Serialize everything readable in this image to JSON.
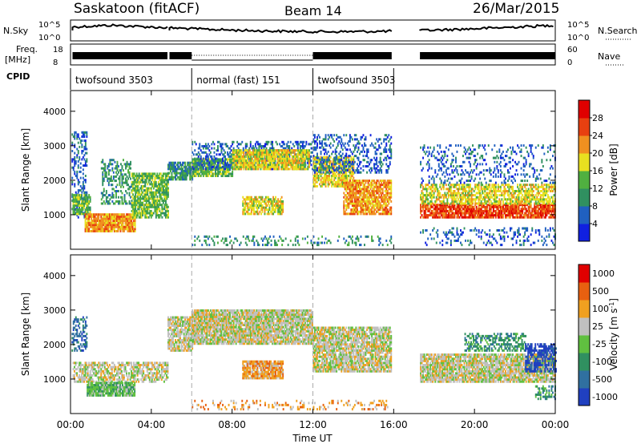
{
  "header": {
    "site": "Saskatoon (fitACF)",
    "beam": "Beam 14",
    "date": "26/Mar/2015"
  },
  "panels": {
    "nsky": {
      "left_label": "N.Sky",
      "ticks": [
        "10^5",
        "10^0"
      ],
      "right_label": "N.Search",
      "right_ticks": [
        "10^5",
        "10^0"
      ]
    },
    "freq": {
      "left_label": "Freq.",
      "unit": "[MHz]",
      "ticks": [
        "18",
        "8"
      ],
      "right_label": "Nave",
      "right_ticks": [
        "60",
        "0"
      ]
    },
    "cpid": {
      "label": "CPID",
      "segments": [
        {
          "label": "twofsound 3503",
          "start_h": 0,
          "end_h": 6
        },
        {
          "label": "normal (fast) 151",
          "start_h": 6,
          "end_h": 12
        },
        {
          "label": "twofsound 3503",
          "start_h": 12,
          "end_h": 16
        }
      ]
    }
  },
  "chart_data": [
    {
      "type": "heatmap",
      "name": "power",
      "ylabel": "Slant Range [km]",
      "xlim": [
        0,
        24
      ],
      "ylim": [
        0,
        4600
      ],
      "yticks": [
        "1000",
        "2000",
        "3000",
        "4000"
      ],
      "colorbar": {
        "label": "Power [dB]",
        "ticks": [
          "4",
          "8",
          "12",
          "16",
          "20",
          "24",
          "28"
        ],
        "colors": [
          "#1020e0",
          "#2060c0",
          "#309060",
          "#50b040",
          "#e8e020",
          "#f09020",
          "#e84010",
          "#e00000"
        ]
      },
      "bands": [
        {
          "x0": 0.05,
          "x1": 0.8,
          "y0": 900,
          "y1": 3400,
          "c": 1,
          "d": 0.32
        },
        {
          "x0": 0.1,
          "x1": 1.0,
          "y0": 1000,
          "y1": 1600,
          "c": 3,
          "d": 0.85
        },
        {
          "x0": 0.7,
          "x1": 3.2,
          "y0": 500,
          "y1": 1000,
          "c": 5,
          "d": 0.9
        },
        {
          "x0": 1.5,
          "x1": 3.0,
          "y0": 1300,
          "y1": 2600,
          "c": 2,
          "d": 0.4
        },
        {
          "x0": 3.0,
          "x1": 4.8,
          "y0": 900,
          "y1": 2200,
          "c": 3,
          "d": 0.75
        },
        {
          "x0": 4.8,
          "x1": 6.0,
          "y0": 2000,
          "y1": 2500,
          "c": 2,
          "d": 0.75
        },
        {
          "x0": 6.0,
          "x1": 8.0,
          "y0": 2100,
          "y1": 2600,
          "c": 3,
          "d": 0.85
        },
        {
          "x0": 6.0,
          "x1": 12.0,
          "y0": 2300,
          "y1": 3100,
          "c": 1,
          "d": 0.35
        },
        {
          "x0": 8.0,
          "x1": 11.8,
          "y0": 2300,
          "y1": 2900,
          "c": 4,
          "d": 0.85
        },
        {
          "x0": 8.5,
          "x1": 10.5,
          "y0": 1000,
          "y1": 1500,
          "c": 4,
          "d": 0.7
        },
        {
          "x0": 12.0,
          "x1": 14.0,
          "y0": 1800,
          "y1": 2700,
          "c": 4,
          "d": 0.75
        },
        {
          "x0": 13.5,
          "x1": 15.9,
          "y0": 1000,
          "y1": 2000,
          "c": 5,
          "d": 0.8
        },
        {
          "x0": 12.0,
          "x1": 15.9,
          "y0": 2200,
          "y1": 3300,
          "c": 1,
          "d": 0.3
        },
        {
          "x0": 17.3,
          "x1": 24.0,
          "y0": 900,
          "y1": 1300,
          "c": 6,
          "d": 0.85
        },
        {
          "x0": 17.3,
          "x1": 24.0,
          "y0": 1300,
          "y1": 1900,
          "c": 4,
          "d": 0.65
        },
        {
          "x0": 17.3,
          "x1": 24.0,
          "y0": 1900,
          "y1": 3000,
          "c": 1,
          "d": 0.18
        },
        {
          "x0": 17.3,
          "x1": 24.0,
          "y0": 100,
          "y1": 600,
          "c": 1,
          "d": 0.2
        },
        {
          "x0": 6.0,
          "x1": 15.9,
          "y0": 100,
          "y1": 400,
          "c": 2,
          "d": 0.2
        }
      ]
    },
    {
      "type": "heatmap",
      "name": "velocity",
      "ylabel": "Slant Range [km]",
      "xlabel": "Time UT",
      "xlim": [
        0,
        24
      ],
      "ylim": [
        0,
        4600
      ],
      "yticks": [
        "1000",
        "2000",
        "3000",
        "4000"
      ],
      "xticks": [
        "00:00",
        "04:00",
        "08:00",
        "12:00",
        "16:00",
        "20:00",
        "00:00"
      ],
      "colorbar": {
        "label": "Velocity [m s^-1]",
        "ticks": [
          "1000",
          "500",
          "100",
          "25",
          "-25",
          "-100",
          "-500",
          "-1000"
        ],
        "colors": [
          "#2040c0",
          "#3070a0",
          "#309060",
          "#60c040",
          "#c0c0c0",
          "#f0a020",
          "#e86010",
          "#e00000"
        ]
      },
      "bands": [
        {
          "x0": 0.1,
          "x1": 4.8,
          "y0": 900,
          "y1": 1500,
          "c": 4,
          "d": 0.6
        },
        {
          "x0": 0.05,
          "x1": 0.8,
          "y0": 1800,
          "y1": 2800,
          "c": 1,
          "d": 0.4
        },
        {
          "x0": 0.8,
          "x1": 3.2,
          "y0": 500,
          "y1": 900,
          "c": 3,
          "d": 0.9
        },
        {
          "x0": 4.8,
          "x1": 6.0,
          "y0": 1800,
          "y1": 2800,
          "c": 4,
          "d": 0.8
        },
        {
          "x0": 6.0,
          "x1": 12.0,
          "y0": 2000,
          "y1": 3000,
          "c": 4,
          "d": 0.9
        },
        {
          "x0": 8.5,
          "x1": 10.5,
          "y0": 1000,
          "y1": 1500,
          "c": 5,
          "d": 0.85
        },
        {
          "x0": 12.0,
          "x1": 15.9,
          "y0": 1200,
          "y1": 2500,
          "c": 4,
          "d": 0.8
        },
        {
          "x0": 17.3,
          "x1": 24.0,
          "y0": 900,
          "y1": 1700,
          "c": 4,
          "d": 0.85
        },
        {
          "x0": 19.5,
          "x1": 22.5,
          "y0": 1800,
          "y1": 2300,
          "c": 2,
          "d": 0.5
        },
        {
          "x0": 22.5,
          "x1": 24.0,
          "y0": 1200,
          "y1": 2000,
          "c": 0,
          "d": 0.6
        },
        {
          "x0": 23.0,
          "x1": 24.0,
          "y0": 400,
          "y1": 800,
          "c": 2,
          "d": 0.5
        },
        {
          "x0": 6.0,
          "x1": 15.9,
          "y0": 100,
          "y1": 400,
          "c": 5,
          "d": 0.18
        }
      ]
    }
  ]
}
